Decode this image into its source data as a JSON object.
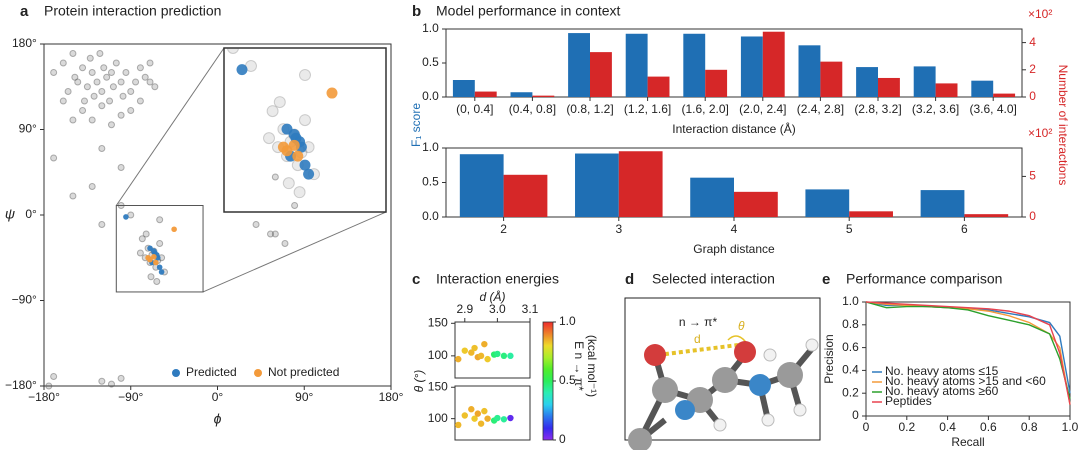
{
  "chart_data": [
    {
      "type": "scatter",
      "panel": "a",
      "title": "Protein interaction prediction",
      "xlabel": "ϕ",
      "ylabel": "ψ",
      "xlim": [
        -180,
        180
      ],
      "ylim": [
        -180,
        180
      ],
      "xticks": [
        {
          "value": -180,
          "label": "−180°"
        },
        {
          "value": -90,
          "label": "−90°"
        },
        {
          "value": 0,
          "label": "0°"
        },
        {
          "value": 90,
          "label": "90°"
        },
        {
          "value": 180,
          "label": "180°"
        }
      ],
      "yticks": [
        {
          "value": -180,
          "label": "−180°"
        },
        {
          "value": -90,
          "label": "−90°"
        },
        {
          "value": 0,
          "label": "0°"
        },
        {
          "value": 90,
          "label": "90°"
        },
        {
          "value": 180,
          "label": "180°"
        }
      ],
      "zoom_xlim": [
        -105,
        -15
      ],
      "zoom_ylim": [
        -81,
        10
      ],
      "legend": "lower right",
      "series": [
        {
          "color": "#555555",
          "x": [
            -170,
            -160,
            -155,
            -150,
            -148,
            -145,
            -140,
            -138,
            -135,
            -132,
            -130,
            -128,
            -125,
            -122,
            -120,
            -118,
            -115,
            -112,
            -110,
            -108,
            -105,
            -100,
            -98,
            -95,
            -90,
            -85,
            -80,
            -75,
            -70,
            -65,
            -160,
            -140,
            -120,
            -100,
            -80,
            -130,
            -150,
            -110,
            -90,
            -70,
            -170,
            -120,
            -100,
            -150,
            -130,
            -80,
            -75,
            -72,
            -70,
            -68,
            -66,
            -64,
            -62,
            -60,
            -58,
            -55,
            -78,
            -74,
            -69,
            -63,
            -90,
            -100,
            -120,
            -60,
            60,
            55,
            70,
            80,
            -170,
            -175,
            -120,
            -110,
            -100,
            40,
            60
          ],
          "values": [
            150,
            160,
            130,
            170,
            145,
            140,
            155,
            120,
            135,
            165,
            150,
            125,
            140,
            170,
            130,
            155,
            145,
            120,
            150,
            135,
            160,
            140,
            125,
            150,
            130,
            140,
            155,
            145,
            160,
            135,
            120,
            110,
            115,
            105,
            120,
            100,
            100,
            95,
            110,
            140,
            60,
            70,
            50,
            20,
            30,
            -40,
            -45,
            -35,
            -50,
            -42,
            -38,
            -55,
            -48,
            -30,
            -45,
            -60,
            -25,
            -20,
            -65,
            -70,
            0,
            10,
            -10,
            -5,
            40,
            -20,
            -30,
            10,
            -170,
            -180,
            -175,
            -178,
            -172,
            -10,
            -20
          ]
        },
        {
          "name": "Predicted",
          "color": "#2f7bbf",
          "x": [
            -95,
            -70,
            -65,
            -62,
            -68,
            -60,
            -66,
            -63,
            -58
          ],
          "values": [
            -2,
            -35,
            -40,
            -45,
            -50,
            -55,
            -38,
            -42,
            -60
          ]
        },
        {
          "name": "Not predicted",
          "color": "#f39a3a",
          "x": [
            -45,
            -72,
            -70,
            -64,
            -66
          ],
          "values": [
            -15,
            -45,
            -47,
            -50,
            -44
          ]
        }
      ]
    },
    {
      "type": "bar",
      "panel": "b",
      "title": "Model performance in context",
      "categories": [
        "(0, 0.4]",
        "(0.4, 0.8]",
        "(0.8, 1.2]",
        "(1.2, 1.6]",
        "(1.6, 2.0]",
        "(2.0, 2.4]",
        "(2.4, 2.8]",
        "(2.8, 3.2]",
        "(3.2, 3.6]",
        "(3.6, 4.0]"
      ],
      "xlabel": "Interaction distance (Å)",
      "ylabel": "F₁ score",
      "y2label": "Number of interactions",
      "y2_multiplier": "×10²",
      "ylim": [
        0,
        1
      ],
      "yticks": [
        {
          "value": 0,
          "label": "0.0"
        },
        0.5,
        {
          "value": 1,
          "label": "1.0"
        }
      ],
      "y2lim": [
        0,
        5
      ],
      "y2ticks": [
        0,
        2,
        4
      ],
      "series": [
        {
          "color": "#1f6fb4",
          "values": [
            0.25,
            0.07,
            0.94,
            0.93,
            0.93,
            0.89,
            0.76,
            0.44,
            0.45,
            0.24
          ]
        },
        {
          "color": "#d62728",
          "axis": "y2",
          "values": [
            0.4,
            0.1,
            3.3,
            1.5,
            2.0,
            4.8,
            2.6,
            1.4,
            1.0,
            0.25
          ]
        }
      ]
    },
    {
      "type": "bar",
      "categories": [
        "2",
        "3",
        "4",
        "5",
        "6"
      ],
      "xlabel": "Graph distance",
      "y2_multiplier": "×10²",
      "ylim": [
        0,
        1
      ],
      "yticks": [
        {
          "value": 0,
          "label": "0.0"
        },
        0.5,
        {
          "value": 1,
          "label": "1.0"
        }
      ],
      "y2lim": [
        0,
        8.5
      ],
      "y2ticks": [
        0,
        5
      ],
      "series": [
        {
          "color": "#1f6fb4",
          "values": [
            0.91,
            0.92,
            0.57,
            0.4,
            0.39
          ]
        },
        {
          "color": "#d62728",
          "axis": "y2",
          "values": [
            5.2,
            8.1,
            3.1,
            0.7,
            0.35
          ]
        }
      ]
    },
    {
      "type": "scatter_energy",
      "panel": "c",
      "title": "Interaction energies",
      "xlabel": "d (Å)",
      "ylabel": "θ (°)",
      "xlim": [
        2.87,
        3.1
      ],
      "xticks": [
        2.9,
        {
          "value": 3,
          "label": "3.0"
        },
        3.1
      ],
      "ylim": [
        66,
        152
      ],
      "yticks": [
        100,
        150
      ],
      "colorbar": {
        "lim": [
          0,
          1
        ],
        "ticks": [
          0,
          0.5,
          {
            "value": 1,
            "label": "1.0"
          }
        ],
        "label": [
          "E n → π*",
          "(kcal mol⁻¹)"
        ]
      },
      "series": [
        {
          "x": [
            2.88,
            2.9,
            2.92,
            2.93,
            2.94,
            2.95,
            2.96,
            2.97,
            2.99,
            3.0,
            3.02,
            3.04
          ],
          "values": [
            95,
            108,
            105,
            112,
            98,
            100,
            118,
            95,
            102,
            103,
            100,
            100
          ],
          "energy": [
            0.85,
            0.82,
            0.84,
            0.83,
            0.86,
            0.84,
            0.85,
            0.82,
            0.48,
            0.45,
            0.46,
            0.42
          ]
        }
      ]
    },
    {
      "type": "scatter_energy",
      "xlim": [
        2.87,
        3.1
      ],
      "ylim": [
        66,
        152
      ],
      "yticks": [
        100,
        150
      ],
      "series": [
        {
          "x": [
            2.88,
            2.9,
            2.92,
            2.93,
            2.94,
            2.95,
            2.96,
            2.97,
            2.99,
            3.0,
            3.02,
            3.04
          ],
          "values": [
            90,
            105,
            115,
            100,
            108,
            92,
            112,
            100,
            97,
            101,
            99,
            101
          ],
          "energy": [
            0.84,
            0.83,
            0.85,
            0.82,
            0.86,
            0.84,
            0.83,
            0.85,
            0.47,
            0.44,
            0.43,
            0.05
          ]
        }
      ]
    },
    {
      "type": "line",
      "panel": "e",
      "title": "Performance comparison",
      "xlabel": "Recall",
      "ylabel": "Precision",
      "xlim": [
        0,
        1
      ],
      "ylim": [
        0,
        1
      ],
      "legend": "lower left",
      "xticks": [
        0,
        0.2,
        0.4,
        0.6,
        0.8,
        {
          "value": 1,
          "label": "1.0"
        }
      ],
      "yticks": [
        0,
        0.2,
        0.4,
        0.6,
        0.8,
        {
          "value": 1,
          "label": "1.0"
        }
      ],
      "x": [
        0,
        0.1,
        0.2,
        0.3,
        0.4,
        0.5,
        0.6,
        0.7,
        0.8,
        0.9,
        0.95,
        1.0
      ],
      "series": [
        {
          "name": "No. heavy atoms ≤15",
          "color": "#2f7bbf",
          "values": [
            1.0,
            0.97,
            0.97,
            0.96,
            0.95,
            0.94,
            0.93,
            0.9,
            0.87,
            0.82,
            0.7,
            0.2
          ]
        },
        {
          "name": "No. heavy atoms >15 and <60",
          "color": "#f39a3a",
          "values": [
            1.0,
            0.98,
            0.97,
            0.96,
            0.95,
            0.94,
            0.92,
            0.88,
            0.82,
            0.72,
            0.6,
            0.1
          ]
        },
        {
          "name": "No. heavy atoms ≥60",
          "color": "#2ca02c",
          "values": [
            1.0,
            0.95,
            0.96,
            0.96,
            0.95,
            0.93,
            0.88,
            0.84,
            0.8,
            0.72,
            0.5,
            0.15
          ]
        },
        {
          "name": "Peptides",
          "color": "#e8434f",
          "values": [
            1.0,
            0.99,
            0.98,
            0.97,
            0.96,
            0.95,
            0.94,
            0.92,
            0.88,
            0.8,
            0.55,
            0.1
          ]
        }
      ]
    }
  ],
  "diagram": {
    "panel": "d",
    "title": "Selected interaction",
    "labels": [
      "n → π*",
      "d",
      "θ"
    ]
  }
}
